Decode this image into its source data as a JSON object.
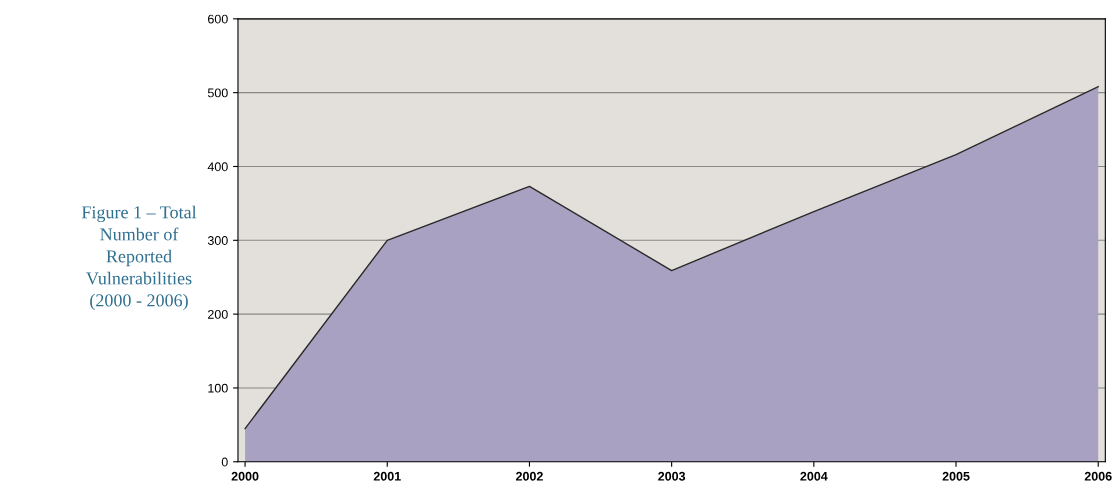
{
  "chart_data": {
    "type": "area",
    "title": "Figure 1 – Total Number of Reported Vulnerabilities (2000 - 2006)",
    "categories": [
      "2000",
      "2001",
      "2002",
      "2003",
      "2004",
      "2005",
      "2006"
    ],
    "values": [
      45,
      300,
      373,
      259,
      339,
      416,
      508
    ],
    "color": "#a9a1c2",
    "ylim": [
      0,
      600
    ],
    "yticks": [
      0,
      100,
      200,
      300,
      400,
      500,
      600
    ],
    "grid": "y"
  }
}
